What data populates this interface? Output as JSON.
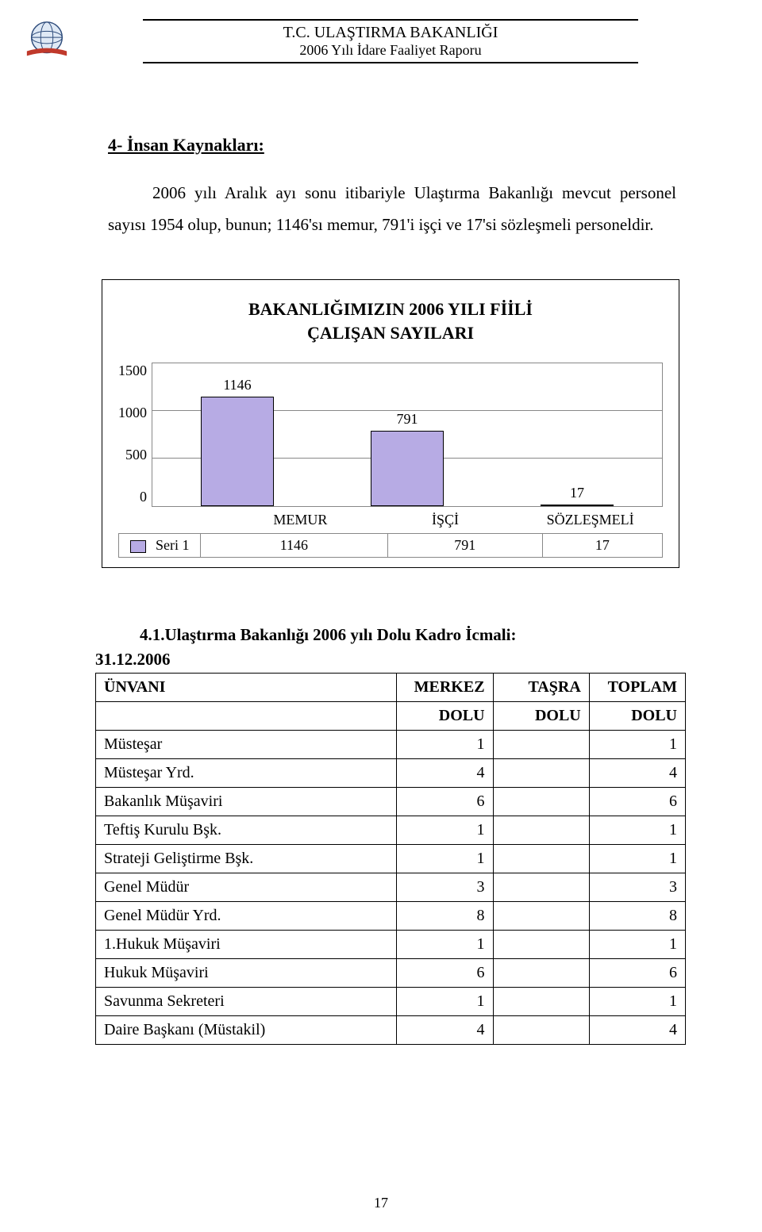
{
  "header": {
    "title": "T.C. ULAŞTIRMA BAKANLIĞI",
    "subtitle": "2006 Yılı İdare Faaliyet Raporu"
  },
  "logo": {
    "globe_fill": "#dfe9f5",
    "globe_stroke": "#2c4a7a",
    "ribbon_fill": "#c0392b"
  },
  "section1": {
    "heading": "4- İnsan Kaynakları:",
    "intro": "2006 yılı Aralık ayı sonu itibariyle Ulaştırma Bakanlığı mevcut personel sayısı 1954 olup, bunun; 1146'sı memur, 791'i işçi ve 17'si sözleşmeli personeldir."
  },
  "chart": {
    "type": "bar",
    "title_line1": "BAKANLIĞIMIZIN 2006 YILI FİİLİ",
    "title_line2": "ÇALIŞAN SAYILARI",
    "categories": [
      "MEMUR",
      "İŞÇİ",
      "SÖZLEŞMELİ"
    ],
    "values": [
      1146,
      791,
      17
    ],
    "y_ticks": [
      1500,
      1000,
      500,
      0
    ],
    "ylim_max": 1500,
    "bar_fill": "#b7abe4",
    "bar_stroke": "#000000",
    "plot_border": "#888888",
    "grid_color": "#888888",
    "series_label": "Seri 1",
    "series_values_text": [
      "1146",
      "791",
      "17"
    ],
    "bar_value_labels": [
      "1146",
      "791",
      "17"
    ]
  },
  "section2": {
    "title": "4.1.Ulaştırma Bakanlığı 2006 yılı Dolu Kadro İcmali:",
    "date": "31.12.2006"
  },
  "table": {
    "headers": {
      "unvani": "ÜNVANI",
      "merkez": "MERKEZ",
      "tasra": "TAŞRA",
      "toplam": "TOPLAM",
      "dolu": "DOLU"
    },
    "rows": [
      {
        "unvani": "Müsteşar",
        "merkez": "1",
        "tasra": "",
        "toplam": "1"
      },
      {
        "unvani": "Müsteşar Yrd.",
        "merkez": "4",
        "tasra": "",
        "toplam": "4"
      },
      {
        "unvani": "Bakanlık Müşaviri",
        "merkez": "6",
        "tasra": "",
        "toplam": "6"
      },
      {
        "unvani": "Teftiş Kurulu Bşk.",
        "merkez": "1",
        "tasra": "",
        "toplam": "1"
      },
      {
        "unvani": "Strateji Geliştirme Bşk.",
        "merkez": "1",
        "tasra": "",
        "toplam": "1"
      },
      {
        "unvani": "Genel Müdür",
        "merkez": "3",
        "tasra": "",
        "toplam": "3"
      },
      {
        "unvani": "Genel Müdür Yrd.",
        "merkez": "8",
        "tasra": "",
        "toplam": "8"
      },
      {
        "unvani": "1.Hukuk Müşaviri",
        "merkez": "1",
        "tasra": "",
        "toplam": "1"
      },
      {
        "unvani": "Hukuk Müşaviri",
        "merkez": "6",
        "tasra": "",
        "toplam": "6"
      },
      {
        "unvani": "Savunma Sekreteri",
        "merkez": "1",
        "tasra": "",
        "toplam": "1"
      },
      {
        "unvani": "Daire Başkanı (Müstakil)",
        "merkez": "4",
        "tasra": "",
        "toplam": "4"
      }
    ]
  },
  "page_number": "17"
}
